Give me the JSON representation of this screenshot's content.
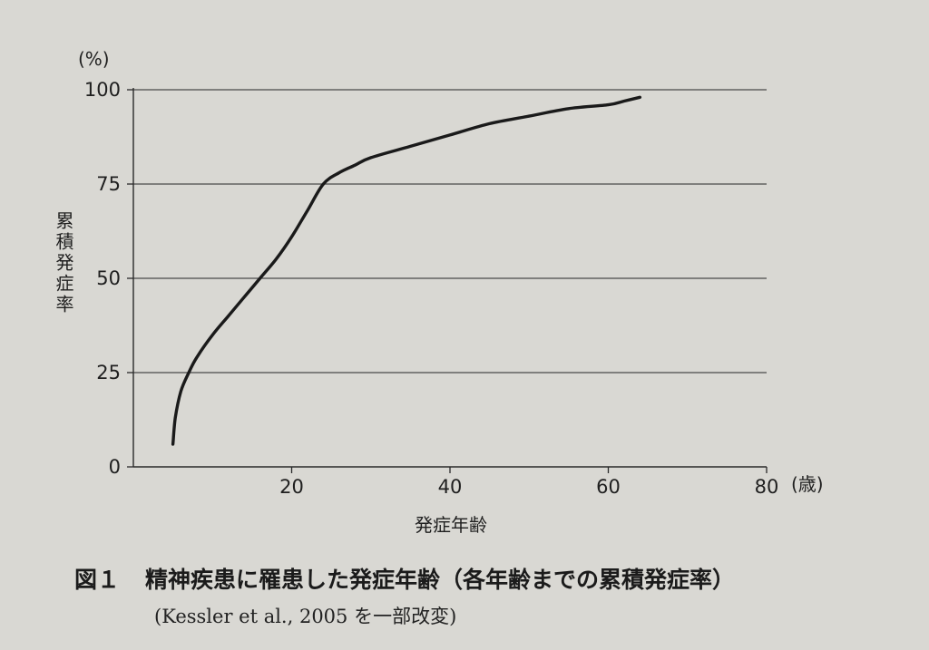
{
  "chart_data": {
    "type": "line",
    "yunit": "(%)",
    "xunit": "(歳)",
    "ylabel": "累積発症率",
    "xlabel": "発症年齢",
    "xlim": [
      0,
      80
    ],
    "ylim": [
      0,
      100
    ],
    "xticks": [
      20,
      40,
      60,
      80
    ],
    "yticks": [
      0,
      25,
      50,
      75,
      100
    ],
    "grid": "horizontal",
    "x": [
      5,
      5.3,
      6,
      7,
      8,
      10,
      12,
      14,
      16,
      18,
      20,
      22,
      24,
      26,
      28,
      30,
      35,
      40,
      45,
      50,
      55,
      60,
      62,
      64
    ],
    "values": [
      6,
      13,
      20,
      25,
      29,
      35,
      40,
      45,
      50,
      55,
      61,
      68,
      75,
      78,
      80,
      82,
      85,
      88,
      91,
      93,
      95,
      96,
      97,
      98
    ]
  },
  "caption": {
    "figure_no": "図１",
    "title": "精神疾患に罹患した発症年齢（各年齢までの累積発症率）",
    "source": "(Kessler et al., 2005 を一部改変)"
  }
}
